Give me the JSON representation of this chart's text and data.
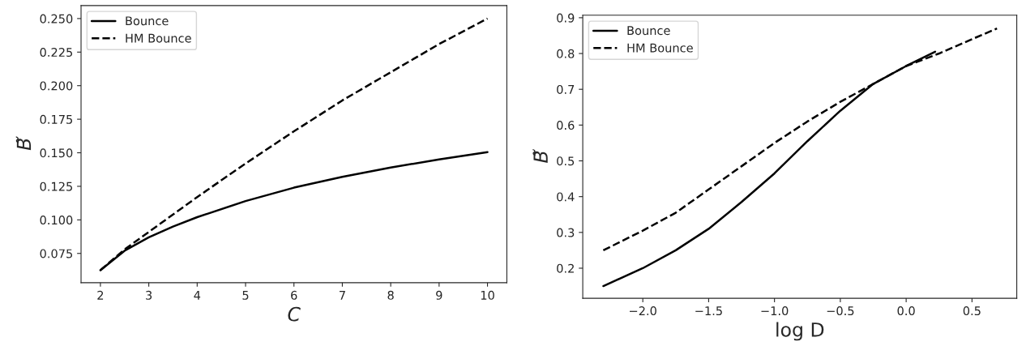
{
  "chart_data": [
    {
      "type": "line",
      "xlabel": "C",
      "ylabel": "B̃",
      "xlim": [
        1.6,
        10.4
      ],
      "ylim": [
        0.0532,
        0.2597
      ],
      "xticks": [
        2,
        3,
        4,
        5,
        6,
        7,
        8,
        9,
        10
      ],
      "yticks": [
        {
          "value": 0.075,
          "label": "0.075"
        },
        {
          "value": 0.1,
          "label": "0.100"
        },
        {
          "value": 0.125,
          "label": "0.125"
        },
        {
          "value": 0.15,
          "label": "0.150"
        },
        {
          "value": 0.175,
          "label": "0.175"
        },
        {
          "value": 0.2,
          "label": "0.200"
        },
        {
          "value": 0.225,
          "label": "0.225"
        },
        {
          "value": 0.25,
          "label": "0.250"
        }
      ],
      "legend": "top left",
      "grid": false,
      "series": [
        {
          "name": "Bounce",
          "color": "#000000",
          "line_style": "solid",
          "x": [
            2,
            2.5,
            3,
            3.5,
            4,
            5,
            6,
            7,
            8,
            9,
            10
          ],
          "values": [
            0.0625,
            0.077,
            0.087,
            0.095,
            0.102,
            0.114,
            0.124,
            0.132,
            0.139,
            0.145,
            0.1505
          ]
        },
        {
          "name": "HM Bounce",
          "color": "#000000",
          "line_style": "dashed",
          "x": [
            2,
            2.5,
            3,
            3.5,
            4,
            5,
            6,
            7,
            8,
            9,
            10
          ],
          "values": [
            0.0625,
            0.078,
            0.091,
            0.104,
            0.117,
            0.142,
            0.166,
            0.189,
            0.21,
            0.231,
            0.25
          ]
        }
      ]
    },
    {
      "type": "line",
      "xlabel": "log D",
      "ylabel": "B̃",
      "xlim": [
        -2.456,
        0.84
      ],
      "ylim": [
        0.116,
        0.907
      ],
      "xticks": [
        {
          "value": -2.0,
          "label": "−2.0"
        },
        {
          "value": -1.5,
          "label": "−1.5"
        },
        {
          "value": -1.0,
          "label": "−1.0"
        },
        {
          "value": -0.5,
          "label": "−0.5"
        },
        {
          "value": 0.0,
          "label": "0.0"
        },
        {
          "value": 0.5,
          "label": "0.5"
        }
      ],
      "yticks": [
        0.2,
        0.3,
        0.4,
        0.5,
        0.6,
        0.7,
        0.8,
        0.9
      ],
      "legend": "top left",
      "grid": false,
      "series": [
        {
          "name": "Bounce",
          "color": "#000000",
          "line_style": "solid",
          "x": [
            -2.3,
            -2.0,
            -1.75,
            -1.5,
            -1.25,
            -1.0,
            -0.75,
            -0.5,
            -0.25,
            0.0,
            0.22
          ],
          "values": [
            0.15,
            0.2,
            0.25,
            0.31,
            0.385,
            0.465,
            0.555,
            0.64,
            0.715,
            0.765,
            0.805
          ]
        },
        {
          "name": "HM Bounce",
          "color": "#000000",
          "line_style": "dashed",
          "x": [
            -2.3,
            -2.0,
            -1.75,
            -1.5,
            -1.25,
            -1.0,
            -0.75,
            -0.5,
            -0.25,
            0.0,
            0.25,
            0.5,
            0.69
          ],
          "values": [
            0.25,
            0.305,
            0.355,
            0.42,
            0.485,
            0.55,
            0.61,
            0.665,
            0.715,
            0.765,
            0.8,
            0.84,
            0.87
          ]
        }
      ]
    }
  ]
}
